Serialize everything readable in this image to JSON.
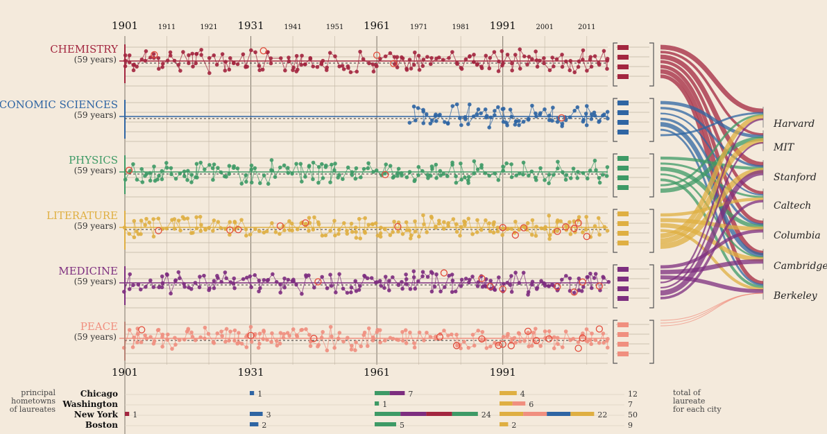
{
  "chart_data": {
    "type": "scatter",
    "x_axis": {
      "top_ticks": [
        "1901",
        "1911",
        "1921",
        "1931",
        "1941",
        "1951",
        "1961",
        "1971",
        "1981",
        "1991",
        "2001",
        "2011"
      ],
      "major_ticks": [
        "1901",
        "1931",
        "1961",
        "1991"
      ],
      "range": [
        1901,
        2016
      ]
    },
    "categories": [
      {
        "name": "CHEMISTRY",
        "subtitle": "(59 years)",
        "color": "#a3263f",
        "start": 1901,
        "highlights": [
          1908,
          1934,
          1961,
          1965
        ]
      },
      {
        "name": "ECONOMIC SCIENCES",
        "subtitle": "(59 years)",
        "color": "#2f65a3",
        "start": 1969,
        "highlights": [
          2005
        ]
      },
      {
        "name": "PHYSICS",
        "subtitle": "(59 years)",
        "color": "#3e9a66",
        "start": 1901,
        "highlights": [
          1902,
          1963
        ]
      },
      {
        "name": "LITERATURE",
        "subtitle": "(59 years)",
        "color": "#dfaf42",
        "start": 1901,
        "highlights": [
          1909,
          1926,
          1928,
          1938,
          1944,
          1966,
          1991,
          1994,
          1996,
          2004,
          2006,
          2008,
          2009,
          2011
        ]
      },
      {
        "name": "MEDICINE",
        "subtitle": "(59 years)",
        "color": "#7d2e7f",
        "start": 1901,
        "highlights": [
          1947,
          1977,
          1986,
          1988,
          1991,
          2004,
          2008,
          2010,
          2014
        ]
      },
      {
        "name": "PEACE",
        "subtitle": "(59 years)",
        "color": "#f08f7f",
        "start": 1901,
        "highlights": [
          1905,
          1931,
          1946,
          1976,
          1980,
          1986,
          1990,
          1991,
          1993,
          1997,
          1999,
          2002,
          2009,
          2010,
          2014
        ]
      }
    ],
    "institutions": [
      "Harvard",
      "MIT",
      "Stanford",
      "Caltech",
      "Columbia",
      "Cambridge",
      "Berkeley"
    ],
    "hometowns": {
      "title": "principal hometowns of laureates",
      "total_label": "total of laureate for each city",
      "cities": [
        {
          "name": "Chicago",
          "counts": [
            null,
            "1",
            "7",
            "4"
          ],
          "total": "12"
        },
        {
          "name": "Washington",
          "counts": [
            null,
            null,
            "1",
            "6"
          ],
          "total": "7"
        },
        {
          "name": "New York",
          "counts": [
            "1",
            "3",
            "24",
            "22"
          ],
          "total": "50"
        },
        {
          "name": "Boston",
          "counts": [
            null,
            "2",
            "5",
            "2"
          ],
          "total": "9"
        }
      ]
    }
  }
}
